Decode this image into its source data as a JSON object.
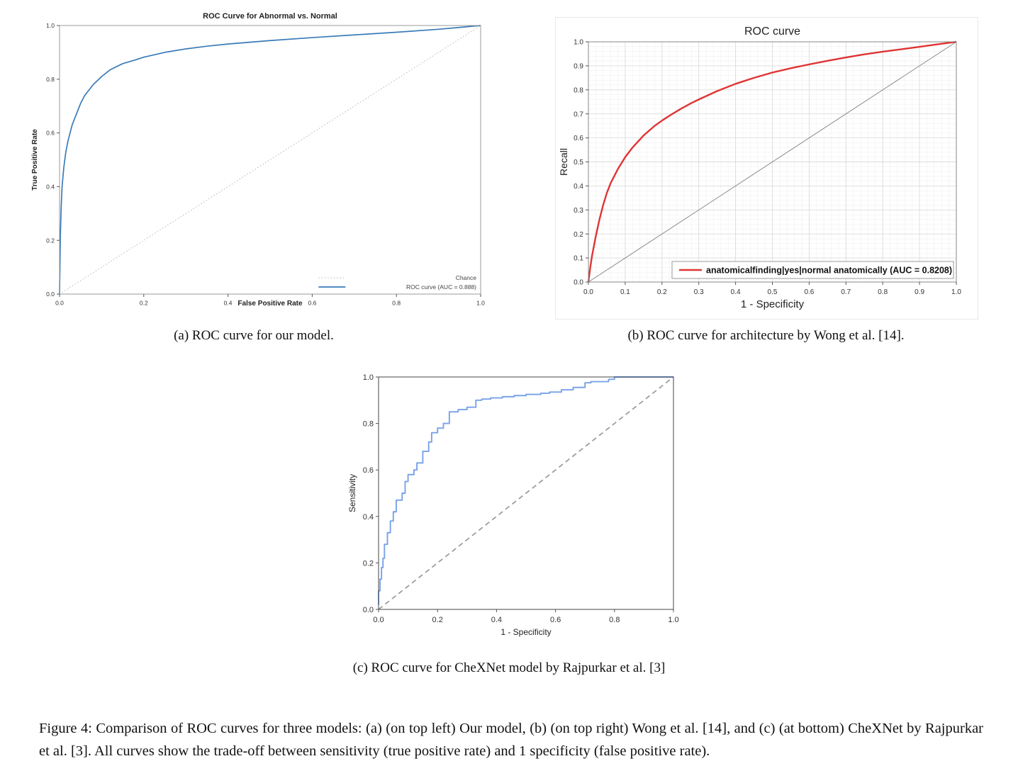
{
  "captions": {
    "a": "(a) ROC curve for our model.",
    "b": "(b) ROC curve for architecture by Wong et al. [14].",
    "c": "(c) ROC curve for CheXNet model by Rajpurkar et al. [3]",
    "figure": "Figure 4: Comparison of ROC curves for three models: (a) (on top left) Our model, (b) (on top right) Wong et al. [14], and (c) (at bottom) CheXNet by Rajpurkar et al. [3]. All curves show the trade-off between sensitivity (true positive rate) and 1 specificity (false positive rate)."
  },
  "chart_data": [
    {
      "id": "a",
      "type": "line",
      "title": "ROC Curve for Abnormal vs. Normal",
      "xlabel": "False Positive Rate",
      "ylabel": "True Positive Rate",
      "xlim": [
        0,
        1
      ],
      "ylim": [
        0,
        1
      ],
      "xticks": [
        0,
        0.2,
        0.4,
        0.6,
        0.8,
        1
      ],
      "yticks": [
        0,
        0.2,
        0.4,
        0.6,
        0.8,
        1
      ],
      "grid": false,
      "legend_position": "lower right",
      "series": [
        {
          "name": "Chance",
          "color": "#b5b5b5",
          "style": "dotted",
          "width": 1,
          "in_legend": true,
          "x": [
            0,
            1
          ],
          "y": [
            0,
            1
          ]
        },
        {
          "name": "ROC curve (AUC = 0.888)",
          "color": "#3a7bb8",
          "style": "solid",
          "width": 1.7,
          "in_legend": true,
          "x": [
            0,
            0.002,
            0.004,
            0.006,
            0.01,
            0.015,
            0.02,
            0.03,
            0.04,
            0.05,
            0.06,
            0.08,
            0.1,
            0.12,
            0.15,
            0.18,
            0.2,
            0.25,
            0.3,
            0.35,
            0.4,
            0.5,
            0.6,
            0.7,
            0.8,
            0.9,
            1
          ],
          "y": [
            0,
            0.22,
            0.33,
            0.4,
            0.47,
            0.53,
            0.57,
            0.63,
            0.67,
            0.71,
            0.74,
            0.78,
            0.81,
            0.835,
            0.858,
            0.872,
            0.882,
            0.9,
            0.913,
            0.923,
            0.931,
            0.944,
            0.955,
            0.965,
            0.975,
            0.986,
            1
          ]
        }
      ]
    },
    {
      "id": "b",
      "type": "line",
      "title": "ROC curve",
      "xlabel": "1 - Specificity",
      "ylabel": "Recall",
      "xlim": [
        0,
        1
      ],
      "ylim": [
        0,
        1
      ],
      "xticks": [
        0,
        0.1,
        0.2,
        0.3,
        0.4,
        0.5,
        0.6,
        0.7,
        0.8,
        0.9,
        1
      ],
      "yticks": [
        0,
        0.1,
        0.2,
        0.3,
        0.4,
        0.5,
        0.6,
        0.7,
        0.8,
        0.9,
        1
      ],
      "grid": true,
      "legend_position": "lower right",
      "series": [
        {
          "name": "diagonal",
          "color": "#808080",
          "style": "solid",
          "width": 0.9,
          "in_legend": false,
          "x": [
            0,
            1
          ],
          "y": [
            0,
            1
          ]
        },
        {
          "name": "anatomicalfinding|yes|normal anatomically (AUC = 0.8208)",
          "color": "#e03434",
          "style": "solid",
          "width": 2.4,
          "in_legend": true,
          "x": [
            0,
            0.005,
            0.01,
            0.02,
            0.03,
            0.04,
            0.05,
            0.06,
            0.08,
            0.1,
            0.12,
            0.15,
            0.18,
            0.2,
            0.22,
            0.25,
            0.28,
            0.3,
            0.35,
            0.4,
            0.45,
            0.5,
            0.55,
            0.6,
            0.65,
            0.7,
            0.75,
            0.8,
            0.85,
            0.9,
            0.95,
            1
          ],
          "y": [
            0,
            0.06,
            0.11,
            0.19,
            0.26,
            0.32,
            0.37,
            0.41,
            0.47,
            0.52,
            0.56,
            0.61,
            0.65,
            0.672,
            0.692,
            0.72,
            0.745,
            0.76,
            0.795,
            0.825,
            0.85,
            0.872,
            0.89,
            0.906,
            0.921,
            0.935,
            0.948,
            0.959,
            0.969,
            0.979,
            0.99,
            1
          ]
        }
      ]
    },
    {
      "id": "c",
      "type": "line",
      "title": "",
      "xlabel": "1 - Specificity",
      "ylabel": "Sensitivity",
      "xlim": [
        0,
        1
      ],
      "ylim": [
        0,
        1
      ],
      "xticks": [
        0,
        0.2,
        0.4,
        0.6,
        0.8,
        1
      ],
      "yticks": [
        0,
        0.2,
        0.4,
        0.6,
        0.8,
        1
      ],
      "grid": false,
      "legend_position": "none",
      "series": [
        {
          "name": "chance (dashed)",
          "color": "#999999",
          "style": "dashed",
          "width": 1.7,
          "in_legend": false,
          "x": [
            0,
            1
          ],
          "y": [
            0,
            1
          ]
        },
        {
          "name": "CheXNet ROC",
          "color": "#78a2e8",
          "style": "solid",
          "width": 1.9,
          "step": true,
          "in_legend": false,
          "x": [
            0,
            0.005,
            0.01,
            0.015,
            0.02,
            0.03,
            0.04,
            0.05,
            0.06,
            0.08,
            0.09,
            0.1,
            0.12,
            0.13,
            0.15,
            0.17,
            0.18,
            0.2,
            0.22,
            0.24,
            0.27,
            0.3,
            0.33,
            0.35,
            0.38,
            0.42,
            0.46,
            0.5,
            0.55,
            0.58,
            0.62,
            0.66,
            0.7,
            0.72,
            0.78,
            0.8,
            0.82,
            1
          ],
          "y": [
            0.02,
            0.08,
            0.13,
            0.18,
            0.22,
            0.28,
            0.33,
            0.38,
            0.42,
            0.47,
            0.5,
            0.55,
            0.58,
            0.6,
            0.63,
            0.68,
            0.72,
            0.76,
            0.78,
            0.8,
            0.85,
            0.86,
            0.87,
            0.9,
            0.905,
            0.91,
            0.915,
            0.92,
            0.925,
            0.93,
            0.935,
            0.945,
            0.955,
            0.975,
            0.98,
            0.99,
            1,
            1
          ]
        }
      ]
    }
  ]
}
